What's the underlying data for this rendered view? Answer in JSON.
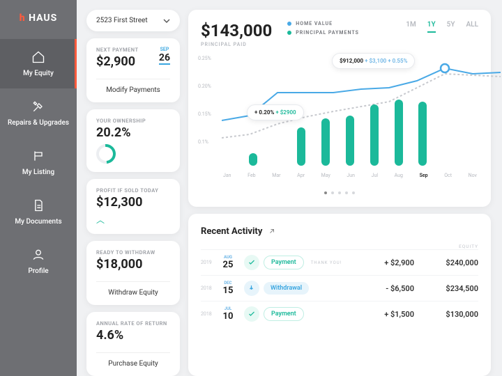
{
  "brand": {
    "name": "HAUS"
  },
  "sidebar": [
    {
      "label": "My Equity",
      "active": true
    },
    {
      "label": "Repairs & Upgrades"
    },
    {
      "label": "My Listing"
    },
    {
      "label": "My Documents"
    },
    {
      "label": "Profile"
    }
  ],
  "address": "2523 First Street",
  "cards": {
    "next": {
      "label": "NEXT PAYMENT",
      "value": "$2,900",
      "action": "Modify Payments",
      "month": "SEP",
      "day": "26"
    },
    "own": {
      "label": "YOUR OWNERSHIP",
      "value": "20.2%"
    },
    "profit": {
      "label": "PROFIT IF SOLD TODAY",
      "value": "$12,300"
    },
    "withdraw": {
      "label": "READY TO WITHDRAW",
      "value": "$18,000",
      "action": "Withdraw Equity"
    },
    "rate": {
      "label": "ANNUAL RATE OF RETURN",
      "value": "4.6%",
      "action": "Purchase Equity"
    }
  },
  "chart": {
    "principal_label": "PRINCIPAL PAID",
    "principal": "$143,000",
    "legend": {
      "home": "HOME VALUE",
      "pp": "PRINCIPAL PAYMENTS"
    },
    "ranges": [
      "1M",
      "1Y",
      "5Y",
      "ALL"
    ],
    "active_range": 1,
    "tooltip_home": {
      "value": "$912,000",
      "d1": "+ $3,100",
      "d2": "+ 0.55%"
    },
    "tooltip_pct": {
      "pct": "+ 0.20%",
      "amt": "+ $2900"
    },
    "y": [
      "0.25%",
      "0.20%",
      "0.15%",
      "0.1%"
    ],
    "months": [
      "Jan",
      "Feb",
      "Mar",
      "Apr",
      "May",
      "Jun",
      "Jul",
      "Aug",
      "Sep",
      "Oct",
      "Nov"
    ],
    "current_month": 8,
    "bars": [
      0,
      18,
      0,
      55,
      68,
      72,
      88,
      95,
      92,
      0,
      0
    ],
    "bar_color": "#1bb99a",
    "line_home": {
      "color": "#49a9e6"
    },
    "line_grey": {
      "color": "#c7c9ce"
    }
  },
  "activity": {
    "title": "Recent Activity",
    "head_equity": "EQUITY",
    "rows": [
      {
        "year": "2019",
        "m": "AUG",
        "d": "25",
        "type": "Payment",
        "badge": "pay",
        "thank": "THANK YOU!",
        "amt": "+ $2,900",
        "equity": "$240,000"
      },
      {
        "year": "2018",
        "m": "DEC",
        "d": "15",
        "type": "Withdrawal",
        "badge": "wd",
        "amt": "- $6,500",
        "equity": "$234,500"
      },
      {
        "year": "2018",
        "m": "JUL",
        "d": "10",
        "type": "Payment",
        "badge": "pay",
        "amt": "+ $1,500",
        "equity": "$130,000"
      }
    ]
  },
  "colors": {
    "teal": "#1bb99a",
    "blue": "#49a9e6",
    "orange": "#ff5a3c"
  }
}
